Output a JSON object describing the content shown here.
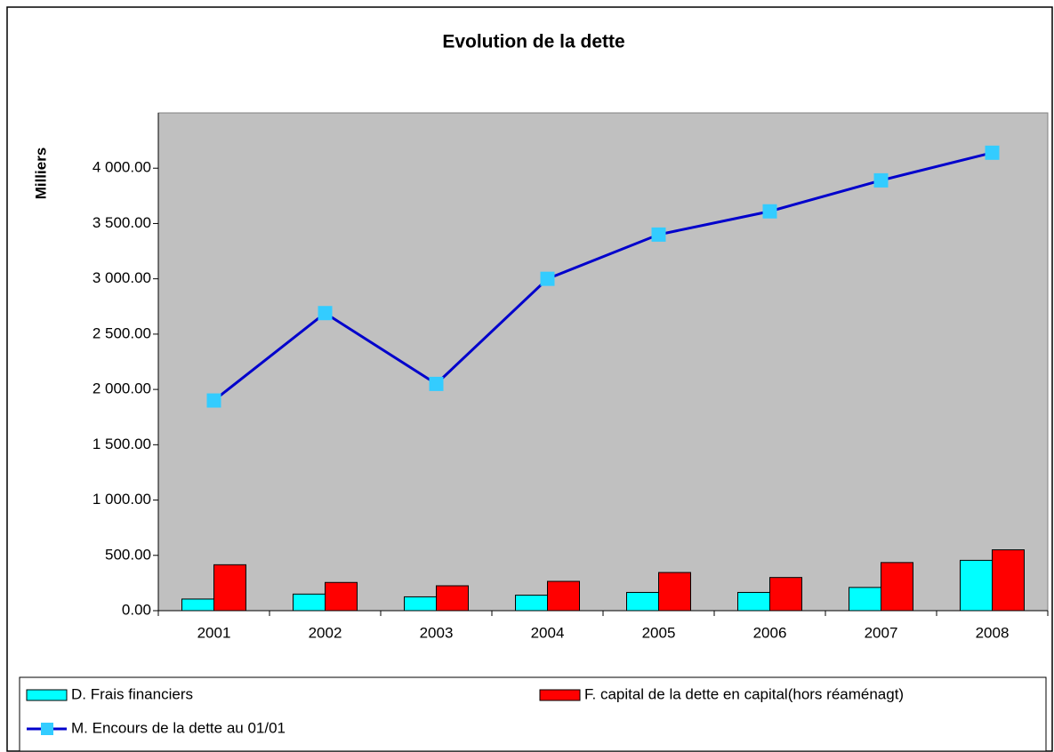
{
  "chart_data": {
    "type": "bar_line",
    "title": "Evolution de la dette",
    "y_label": "Milliers",
    "categories": [
      "2001",
      "2002",
      "2003",
      "2004",
      "2005",
      "2006",
      "2007",
      "2008"
    ],
    "series": [
      {
        "name": "D. Frais financiers",
        "type": "bar",
        "color": "#00ffff",
        "values": [
          105,
          150,
          125,
          140,
          165,
          165,
          210,
          455
        ]
      },
      {
        "name": "F. capital de la dette en capital(hors réaménagt)",
        "type": "bar",
        "color": "#ff0000",
        "values": [
          415,
          255,
          225,
          265,
          345,
          300,
          435,
          550
        ]
      },
      {
        "name": "M. Encours de la dette au 01/01",
        "type": "line",
        "color": "#0000cc",
        "marker_color": "#33ccff",
        "values": [
          1900,
          2690,
          2050,
          3000,
          3400,
          3610,
          3890,
          4140
        ]
      }
    ],
    "ylim": [
      0,
      4500
    ],
    "yticks": [
      {
        "value": 0,
        "label": "0.00"
      },
      {
        "value": 500,
        "label": "500.00"
      },
      {
        "value": 1000,
        "label": "1 000.00"
      },
      {
        "value": 1500,
        "label": "1 500.00"
      },
      {
        "value": 2000,
        "label": "2 000.00"
      },
      {
        "value": 2500,
        "label": "2 500.00"
      },
      {
        "value": 3000,
        "label": "3 000.00"
      },
      {
        "value": 3500,
        "label": "3 500.00"
      },
      {
        "value": 4000,
        "label": "4 000.00"
      }
    ],
    "plot_background": "#c0c0c0"
  }
}
